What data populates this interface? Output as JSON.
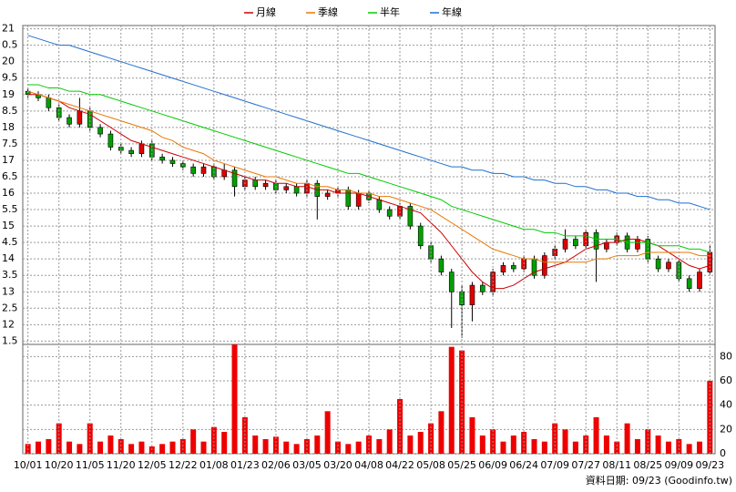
{
  "chart_data": [
    {
      "type": "candlestick",
      "legend_position": "top",
      "ylim": [
        11.4,
        21.1
      ],
      "yticks": [
        21,
        {
          "value": 20.5,
          "label": "0.5"
        },
        20,
        {
          "value": 19.5,
          "label": "9.5"
        },
        19,
        {
          "value": 18.5,
          "label": "8.5"
        },
        18,
        {
          "value": 17.5,
          "label": "7.5"
        },
        17,
        {
          "value": 16.5,
          "label": "6.5"
        },
        16,
        {
          "value": 15.5,
          "label": "5.5"
        },
        15,
        {
          "value": 14.5,
          "label": "4.5"
        },
        14,
        {
          "value": 13.5,
          "label": "3.5"
        },
        13,
        {
          "value": 12.5,
          "label": "2.5"
        },
        12,
        {
          "value": 11.5,
          "label": "1.5"
        }
      ],
      "grid": true,
      "up_color": "#e00000",
      "down_color": "#00a000",
      "open": [
        19.1,
        19.0,
        18.9,
        18.6,
        18.3,
        18.1,
        18.5,
        18.0,
        17.8,
        17.4,
        17.3,
        17.2,
        17.5,
        17.1,
        17.0,
        16.9,
        16.8,
        16.6,
        16.8,
        16.5,
        16.7,
        16.2,
        16.4,
        16.2,
        16.3,
        16.1,
        16.2,
        16.0,
        16.3,
        15.9,
        16.0,
        16.1,
        15.6,
        16.0,
        15.8,
        15.5,
        15.3,
        15.6,
        15.0,
        14.4,
        14.0,
        13.6,
        13.0,
        12.6,
        13.2,
        13.0,
        13.6,
        13.8,
        13.7,
        14.0,
        13.5,
        14.1,
        14.3,
        14.6,
        14.4,
        14.8,
        14.3,
        14.5,
        14.7,
        14.3,
        14.6,
        14.0,
        13.7,
        13.9,
        13.4,
        13.1,
        13.6
      ],
      "high": [
        19.2,
        19.1,
        19.0,
        18.7,
        18.4,
        18.9,
        18.6,
        18.1,
        17.9,
        17.5,
        17.4,
        17.6,
        17.6,
        17.2,
        17.1,
        17.0,
        16.9,
        16.9,
        16.9,
        16.9,
        16.8,
        16.5,
        16.5,
        16.4,
        16.4,
        16.3,
        16.3,
        16.4,
        16.4,
        16.1,
        16.2,
        16.2,
        16.1,
        16.1,
        15.9,
        15.6,
        15.7,
        15.7,
        15.1,
        14.5,
        14.1,
        13.7,
        13.2,
        13.3,
        13.3,
        13.7,
        13.9,
        13.9,
        14.1,
        14.1,
        14.2,
        14.4,
        14.9,
        14.7,
        14.9,
        14.9,
        14.6,
        14.8,
        14.8,
        14.7,
        14.7,
        14.1,
        14.0,
        14.0,
        13.5,
        13.7,
        14.4
      ],
      "low": [
        18.9,
        18.8,
        18.5,
        18.2,
        18.0,
        18.0,
        17.9,
        17.7,
        17.3,
        17.2,
        17.1,
        17.1,
        17.0,
        16.9,
        16.8,
        16.7,
        16.5,
        16.5,
        16.4,
        16.4,
        15.9,
        16.1,
        16.1,
        16.1,
        16.0,
        16.0,
        15.9,
        15.9,
        15.2,
        15.8,
        15.9,
        15.5,
        15.5,
        15.7,
        15.4,
        15.2,
        15.2,
        14.9,
        14.3,
        13.9,
        13.5,
        11.9,
        11.6,
        12.1,
        12.9,
        12.9,
        13.5,
        13.6,
        13.6,
        13.4,
        13.4,
        14.0,
        14.2,
        14.3,
        14.3,
        13.3,
        14.2,
        14.4,
        14.2,
        14.2,
        13.9,
        13.6,
        13.6,
        13.3,
        13.0,
        13.0,
        13.5
      ],
      "close": [
        19.0,
        18.9,
        18.6,
        18.3,
        18.1,
        18.5,
        18.0,
        17.8,
        17.4,
        17.3,
        17.2,
        17.5,
        17.1,
        17.0,
        16.9,
        16.8,
        16.6,
        16.8,
        16.5,
        16.7,
        16.2,
        16.4,
        16.2,
        16.3,
        16.1,
        16.2,
        16.0,
        16.3,
        15.9,
        16.0,
        16.1,
        15.6,
        16.0,
        15.8,
        15.5,
        15.3,
        15.6,
        15.0,
        14.4,
        14.0,
        13.6,
        13.0,
        12.6,
        13.2,
        13.0,
        13.6,
        13.8,
        13.7,
        14.0,
        13.5,
        14.1,
        14.3,
        14.6,
        14.4,
        14.8,
        14.3,
        14.5,
        14.7,
        14.3,
        14.6,
        14.0,
        13.7,
        13.9,
        13.4,
        13.1,
        13.6,
        14.2
      ],
      "series": [
        {
          "name": "月線",
          "color": "#cc0000",
          "values": [
            19.0,
            19.0,
            18.9,
            18.8,
            18.6,
            18.5,
            18.4,
            18.2,
            18.0,
            17.8,
            17.6,
            17.5,
            17.4,
            17.3,
            17.2,
            17.1,
            17.0,
            16.9,
            16.8,
            16.7,
            16.6,
            16.5,
            16.4,
            16.4,
            16.3,
            16.3,
            16.2,
            16.2,
            16.1,
            16.1,
            16.0,
            16.0,
            16.0,
            15.9,
            15.8,
            15.7,
            15.6,
            15.5,
            15.4,
            15.1,
            14.8,
            14.4,
            14.0,
            13.6,
            13.3,
            13.1,
            13.1,
            13.2,
            13.4,
            13.6,
            13.7,
            13.8,
            13.9,
            14.1,
            14.3,
            14.4,
            14.5,
            14.5,
            14.6,
            14.6,
            14.5,
            14.4,
            14.2,
            14.0,
            13.8,
            13.7,
            13.8
          ]
        },
        {
          "name": "季線",
          "color": "#e87800",
          "values": [
            19.1,
            19.0,
            18.9,
            18.8,
            18.7,
            18.6,
            18.5,
            18.4,
            18.3,
            18.2,
            18.1,
            18.0,
            17.9,
            17.7,
            17.6,
            17.4,
            17.3,
            17.2,
            17.0,
            16.9,
            16.8,
            16.7,
            16.6,
            16.5,
            16.5,
            16.4,
            16.3,
            16.3,
            16.2,
            16.2,
            16.1,
            16.1,
            16.0,
            16.0,
            15.9,
            15.9,
            15.8,
            15.7,
            15.6,
            15.5,
            15.3,
            15.1,
            14.9,
            14.7,
            14.5,
            14.3,
            14.2,
            14.1,
            14.0,
            14.0,
            13.9,
            13.9,
            13.9,
            13.9,
            13.9,
            14.0,
            14.0,
            14.1,
            14.1,
            14.1,
            14.2,
            14.2,
            14.2,
            14.2,
            14.2,
            14.1,
            14.1
          ]
        },
        {
          "name": "半年",
          "color": "#00cc00",
          "values": [
            19.3,
            19.3,
            19.2,
            19.2,
            19.1,
            19.1,
            19.0,
            19.0,
            18.9,
            18.8,
            18.7,
            18.6,
            18.5,
            18.4,
            18.3,
            18.2,
            18.1,
            18.0,
            17.9,
            17.8,
            17.7,
            17.6,
            17.5,
            17.4,
            17.3,
            17.2,
            17.1,
            17.0,
            16.9,
            16.8,
            16.7,
            16.6,
            16.6,
            16.5,
            16.4,
            16.3,
            16.2,
            16.1,
            16.0,
            15.9,
            15.8,
            15.6,
            15.5,
            15.4,
            15.3,
            15.2,
            15.1,
            15.0,
            14.9,
            14.9,
            14.8,
            14.8,
            14.7,
            14.7,
            14.7,
            14.6,
            14.6,
            14.6,
            14.5,
            14.5,
            14.5,
            14.4,
            14.4,
            14.4,
            14.3,
            14.3,
            14.2
          ]
        },
        {
          "name": "年線",
          "color": "#1f6fd0",
          "values": [
            20.8,
            20.7,
            20.6,
            20.5,
            20.5,
            20.4,
            20.3,
            20.2,
            20.1,
            20.0,
            19.9,
            19.8,
            19.7,
            19.6,
            19.5,
            19.4,
            19.3,
            19.2,
            19.1,
            19.0,
            18.9,
            18.8,
            18.7,
            18.6,
            18.5,
            18.4,
            18.3,
            18.2,
            18.1,
            18.0,
            17.9,
            17.8,
            17.7,
            17.6,
            17.5,
            17.4,
            17.3,
            17.2,
            17.1,
            17.0,
            16.9,
            16.8,
            16.8,
            16.7,
            16.7,
            16.6,
            16.6,
            16.5,
            16.5,
            16.4,
            16.4,
            16.3,
            16.3,
            16.2,
            16.2,
            16.1,
            16.1,
            16.0,
            16.0,
            15.9,
            15.9,
            15.8,
            15.8,
            15.7,
            15.7,
            15.6,
            15.5
          ]
        }
      ]
    },
    {
      "type": "bar",
      "color": "#ee0000",
      "ylim": [
        0,
        90
      ],
      "yticks": [
        0,
        20,
        40,
        60,
        80
      ],
      "grid": true,
      "categories": [
        "10/01",
        null,
        null,
        "10/20",
        null,
        null,
        "11/05",
        null,
        null,
        "11/20",
        null,
        null,
        "12/05",
        null,
        null,
        "12/22",
        null,
        null,
        "01/08",
        null,
        null,
        "01/23",
        null,
        null,
        "02/06",
        null,
        null,
        "03/05",
        null,
        null,
        "03/20",
        null,
        null,
        "04/08",
        null,
        null,
        "04/22",
        null,
        null,
        "05/08",
        null,
        null,
        "05/25",
        null,
        null,
        "06/09",
        null,
        null,
        "06/24",
        null,
        null,
        "07/09",
        null,
        null,
        "07/27",
        null,
        null,
        "08/11",
        null,
        null,
        "08/25",
        null,
        null,
        "09/09",
        null,
        null,
        "09/23"
      ],
      "values": [
        8,
        10,
        12,
        25,
        10,
        8,
        25,
        10,
        15,
        12,
        8,
        10,
        6,
        8,
        10,
        12,
        20,
        10,
        22,
        18,
        90,
        30,
        15,
        12,
        14,
        10,
        8,
        12,
        15,
        35,
        10,
        8,
        10,
        15,
        12,
        20,
        45,
        15,
        18,
        25,
        35,
        88,
        85,
        30,
        15,
        20,
        10,
        15,
        18,
        12,
        10,
        25,
        20,
        10,
        15,
        30,
        15,
        10,
        25,
        12,
        20,
        15,
        10,
        12,
        8,
        10,
        60
      ],
      "source": "資料日期: 09/23 (Goodinfo.tw)"
    }
  ]
}
